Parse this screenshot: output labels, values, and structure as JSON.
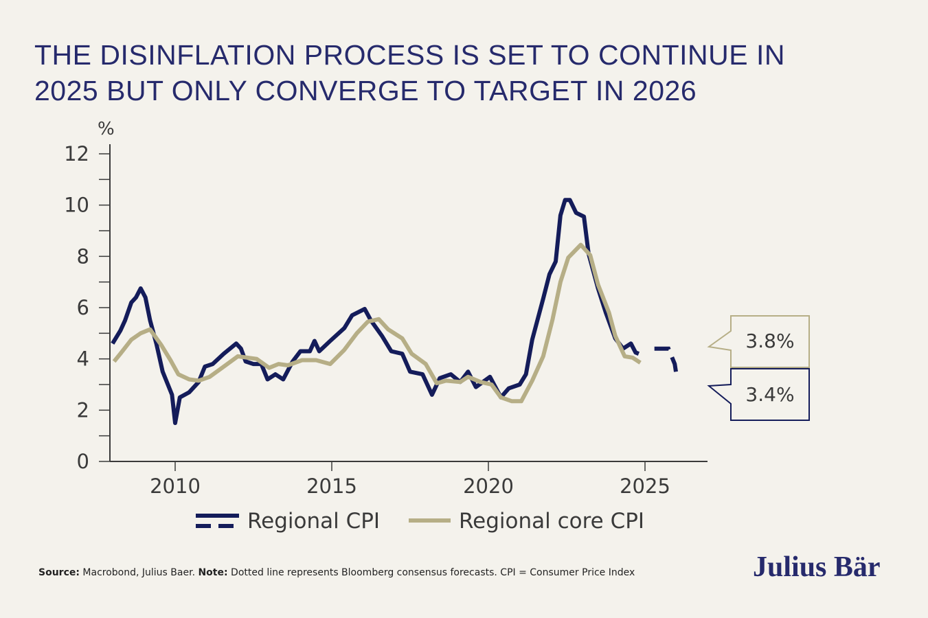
{
  "title": [
    "THE DISINFLATION PROCESS IS SET TO CONTINUE IN",
    "2025 BUT ONLY CONVERGE TO TARGET IN 2026"
  ],
  "footer": {
    "source_label": "Source:",
    "source_text": " Macrobond, Julius Baer. ",
    "note_label": "Note:",
    "note_text": " Dotted line represents Bloomberg consensus forecasts. CPI = Consumer Price Index"
  },
  "logo": "Julius Bär",
  "colors": {
    "cpi": "#141c5a",
    "core": "#b6ae86",
    "axis": "#3a3a3a",
    "background": "#f4f2ec",
    "title": "#262a6c"
  },
  "chart_data": {
    "type": "line",
    "ylabel": "%",
    "ylim": [
      0,
      12
    ],
    "xlim": [
      2008,
      2027
    ],
    "yticks": [
      "0",
      "2",
      "4",
      "6",
      "8",
      "10",
      "12"
    ],
    "xticks": [
      "2010",
      "2015",
      "2020",
      "2025"
    ],
    "legend_position": "bottom",
    "series": [
      {
        "name": "Regional CPI",
        "x": [
          2008.0,
          2008.25,
          2008.4,
          2008.6,
          2008.75,
          2008.9,
          2009.05,
          2009.2,
          2009.4,
          2009.6,
          2009.9,
          2010.0,
          2010.15,
          2010.45,
          2010.75,
          2010.95,
          2011.2,
          2011.55,
          2011.95,
          2012.1,
          2012.25,
          2012.5,
          2012.75,
          2012.95,
          2013.2,
          2013.45,
          2013.75,
          2014.0,
          2014.3,
          2014.45,
          2014.6,
          2014.95,
          2015.4,
          2015.65,
          2016.05,
          2016.25,
          2016.6,
          2016.9,
          2017.25,
          2017.5,
          2017.9,
          2018.2,
          2018.45,
          2018.8,
          2019.1,
          2019.35,
          2019.6,
          2020.05,
          2020.4,
          2020.65,
          2021.0,
          2021.2,
          2021.4,
          2021.75,
          2021.95,
          2022.15,
          2022.3,
          2022.45,
          2022.6,
          2022.8,
          2023.05,
          2023.2,
          2023.5,
          2023.75,
          2024.05,
          2024.3,
          2024.55,
          2024.7,
          2024.8
        ],
        "values": [
          4.6,
          5.1,
          5.5,
          6.2,
          6.4,
          6.75,
          6.4,
          5.5,
          4.6,
          3.5,
          2.6,
          1.5,
          2.5,
          2.7,
          3.1,
          3.7,
          3.8,
          4.2,
          4.6,
          4.4,
          3.9,
          3.8,
          3.8,
          3.2,
          3.4,
          3.2,
          3.9,
          4.3,
          4.3,
          4.7,
          4.3,
          4.7,
          5.2,
          5.7,
          5.95,
          5.5,
          4.9,
          4.3,
          4.2,
          3.5,
          3.4,
          2.6,
          3.25,
          3.4,
          3.1,
          3.5,
          2.9,
          3.3,
          2.5,
          2.85,
          3.0,
          3.4,
          4.75,
          6.35,
          7.3,
          7.8,
          9.6,
          10.2,
          10.2,
          9.7,
          9.55,
          8.1,
          6.75,
          5.8,
          4.8,
          4.4,
          4.6,
          4.25,
          4.2
        ],
        "forecast": {
          "x": [
            2025.3,
            2025.75,
            2025.95,
            2026.0
          ],
          "values": [
            4.4,
            4.4,
            3.8,
            3.4
          ]
        },
        "end_label": "3.4%"
      },
      {
        "name": "Regional core CPI",
        "x": [
          2008.05,
          2008.25,
          2008.6,
          2008.9,
          2009.2,
          2009.55,
          2009.85,
          2010.1,
          2010.45,
          2010.75,
          2011.1,
          2011.55,
          2012.0,
          2012.3,
          2012.6,
          2013.0,
          2013.3,
          2013.6,
          2014.05,
          2014.5,
          2014.95,
          2015.4,
          2015.8,
          2016.15,
          2016.5,
          2016.8,
          2017.25,
          2017.55,
          2018.0,
          2018.35,
          2018.65,
          2019.1,
          2019.35,
          2019.75,
          2020.1,
          2020.4,
          2020.75,
          2021.05,
          2021.4,
          2021.75,
          2022.05,
          2022.3,
          2022.55,
          2022.95,
          2023.25,
          2023.5,
          2023.85,
          2024.05,
          2024.35,
          2024.6,
          2024.85
        ],
        "values": [
          3.9,
          4.2,
          4.75,
          5.0,
          5.15,
          4.55,
          3.95,
          3.4,
          3.2,
          3.15,
          3.3,
          3.7,
          4.1,
          4.05,
          4.0,
          3.65,
          3.8,
          3.75,
          3.95,
          3.95,
          3.8,
          4.35,
          5.0,
          5.45,
          5.55,
          5.15,
          4.8,
          4.2,
          3.8,
          3.05,
          3.15,
          3.1,
          3.3,
          3.1,
          3.0,
          2.5,
          2.35,
          2.35,
          3.15,
          4.1,
          5.55,
          7.0,
          7.95,
          8.45,
          8.05,
          6.9,
          5.8,
          4.9,
          4.1,
          4.05,
          3.85
        ],
        "end_label": "3.8%"
      }
    ]
  }
}
